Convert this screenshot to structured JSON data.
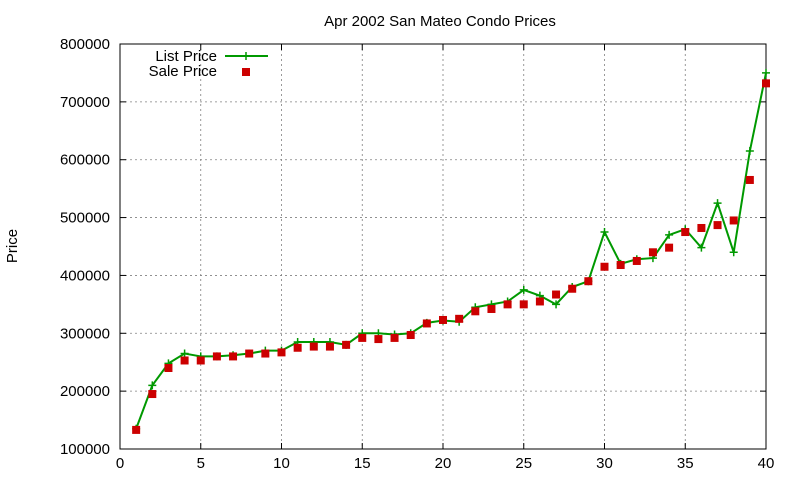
{
  "chart_data": {
    "type": "line",
    "title": "Apr 2002 San Mateo Condo Prices",
    "xlabel": "",
    "ylabel": "Price",
    "xlim": [
      0,
      40
    ],
    "ylim": [
      100000,
      800000
    ],
    "xticks": [
      "0",
      "5",
      "10",
      "15",
      "20",
      "25",
      "30",
      "35",
      "40"
    ],
    "yticks": [
      "100000",
      "200000",
      "300000",
      "400000",
      "500000",
      "600000",
      "700000",
      "800000"
    ],
    "grid": true,
    "legend_position": "top-left",
    "series": [
      {
        "name": "List Price",
        "style": "line-with-plus",
        "color": "#009900",
        "x": [
          1,
          2,
          3,
          4,
          5,
          6,
          7,
          8,
          9,
          10,
          11,
          12,
          13,
          14,
          15,
          16,
          17,
          18,
          19,
          20,
          21,
          22,
          23,
          24,
          25,
          26,
          27,
          28,
          29,
          30,
          31,
          32,
          33,
          34,
          35,
          36,
          37,
          38,
          39,
          40
        ],
        "values": [
          135000,
          210000,
          248000,
          265000,
          260000,
          260000,
          262000,
          265000,
          270000,
          270000,
          285000,
          285000,
          285000,
          280000,
          300000,
          300000,
          298000,
          300000,
          318000,
          322000,
          320000,
          345000,
          350000,
          355000,
          375000,
          365000,
          350000,
          380000,
          390000,
          475000,
          420000,
          428000,
          430000,
          470000,
          480000,
          448000,
          525000,
          440000,
          615000,
          750000
        ]
      },
      {
        "name": "Sale Price",
        "style": "points-square",
        "color": "#cc0000",
        "x": [
          1,
          2,
          3,
          4,
          5,
          6,
          7,
          8,
          9,
          10,
          11,
          12,
          13,
          14,
          15,
          16,
          17,
          18,
          19,
          20,
          21,
          22,
          23,
          24,
          25,
          26,
          27,
          28,
          29,
          30,
          31,
          32,
          33,
          34,
          35,
          36,
          37,
          38,
          39,
          40
        ],
        "values": [
          133000,
          195000,
          240000,
          253000,
          253000,
          260000,
          260000,
          265000,
          265000,
          267000,
          275000,
          277000,
          277000,
          280000,
          292000,
          290000,
          292000,
          297000,
          317000,
          323000,
          325000,
          338000,
          342000,
          350000,
          350000,
          355000,
          367000,
          377000,
          390000,
          415000,
          418000,
          425000,
          440000,
          448000,
          475000,
          482000,
          487000,
          495000,
          565000,
          732000
        ]
      }
    ]
  }
}
